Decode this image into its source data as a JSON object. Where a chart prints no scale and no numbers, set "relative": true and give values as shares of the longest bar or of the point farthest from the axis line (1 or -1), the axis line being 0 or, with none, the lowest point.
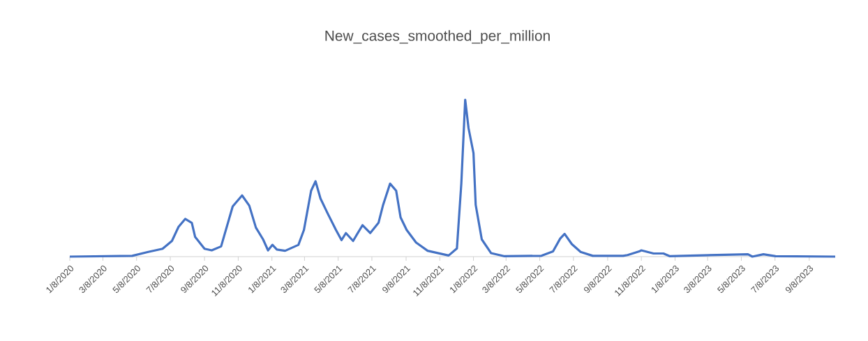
{
  "chart_data": {
    "type": "line",
    "title": "New_cases_smoothed_per_million",
    "relative": true,
    "x": [
      "2020-01-08",
      "2020-04-30",
      "2020-05-29",
      "2020-06-24",
      "2020-07-11",
      "2020-07-23",
      "2020-08-04",
      "2020-08-16",
      "2020-08-22",
      "2020-09-08",
      "2020-09-21",
      "2020-10-08",
      "2020-10-29",
      "2020-11-15",
      "2020-11-28",
      "2020-12-10",
      "2020-12-23",
      "2021-01-01",
      "2021-01-09",
      "2021-01-17",
      "2021-02-01",
      "2021-02-25",
      "2021-03-07",
      "2021-03-20",
      "2021-03-28",
      "2021-04-06",
      "2021-04-19",
      "2021-05-04",
      "2021-05-14",
      "2021-05-22",
      "2021-06-04",
      "2021-06-21",
      "2021-07-05",
      "2021-07-20",
      "2021-07-28",
      "2021-08-10",
      "2021-08-21",
      "2021-08-29",
      "2021-09-09",
      "2021-09-26",
      "2021-10-17",
      "2021-11-24",
      "2021-12-09",
      "2021-12-17",
      "2021-12-24",
      "2021-12-30",
      "2022-01-08",
      "2022-01-12",
      "2022-01-23",
      "2022-02-09",
      "2022-03-04",
      "2022-05-11",
      "2022-06-01",
      "2022-06-14",
      "2022-06-22",
      "2022-07-05",
      "2022-07-21",
      "2022-08-12",
      "2022-10-06",
      "2022-10-14",
      "2022-11-04",
      "2022-11-08",
      "2022-11-30",
      "2022-12-18",
      "2022-12-29",
      "2023-05-20",
      "2023-05-28",
      "2023-06-17",
      "2023-07-09",
      "2023-10-25"
    ],
    "series": [
      {
        "color": "#4472c4",
        "values": [
          0,
          0.005,
          0.03,
          0.05,
          0.1,
          0.19,
          0.24,
          0.215,
          0.125,
          0.05,
          0.04,
          0.065,
          0.32,
          0.39,
          0.325,
          0.185,
          0.11,
          0.04,
          0.075,
          0.045,
          0.037,
          0.075,
          0.17,
          0.42,
          0.48,
          0.37,
          0.275,
          0.17,
          0.105,
          0.15,
          0.1,
          0.2,
          0.15,
          0.215,
          0.325,
          0.465,
          0.42,
          0.25,
          0.17,
          0.09,
          0.037,
          0.007,
          0.052,
          0.467,
          1.0,
          0.82,
          0.66,
          0.33,
          0.11,
          0.022,
          0.003,
          0.005,
          0.033,
          0.115,
          0.145,
          0.08,
          0.03,
          0.005,
          0.005,
          0.01,
          0.033,
          0.04,
          0.02,
          0.02,
          0.003,
          0.015,
          0,
          0.015,
          0.003,
          0
        ]
      }
    ],
    "xlim": [
      "2020-01-08",
      "2023-10-25"
    ],
    "xticks": [
      {
        "value": "2020-01-08",
        "label": "1/8/2020"
      },
      {
        "value": "2020-03-08",
        "label": "3/8/2020"
      },
      {
        "value": "2020-05-08",
        "label": "5/8/2020"
      },
      {
        "value": "2020-07-08",
        "label": "7/8/2020"
      },
      {
        "value": "2020-09-08",
        "label": "9/8/2020"
      },
      {
        "value": "2020-11-08",
        "label": "11/8/2020"
      },
      {
        "value": "2021-01-08",
        "label": "1/8/2021"
      },
      {
        "value": "2021-03-08",
        "label": "3/8/2021"
      },
      {
        "value": "2021-05-08",
        "label": "5/8/2021"
      },
      {
        "value": "2021-07-08",
        "label": "7/8/2021"
      },
      {
        "value": "2021-09-08",
        "label": "9/8/2021"
      },
      {
        "value": "2021-11-08",
        "label": "11/8/2021"
      },
      {
        "value": "2022-01-08",
        "label": "1/8/2022"
      },
      {
        "value": "2022-03-08",
        "label": "3/8/2022"
      },
      {
        "value": "2022-05-08",
        "label": "5/8/2022"
      },
      {
        "value": "2022-07-08",
        "label": "7/8/2022"
      },
      {
        "value": "2022-09-08",
        "label": "9/8/2022"
      },
      {
        "value": "2022-11-08",
        "label": "11/8/2022"
      },
      {
        "value": "2023-01-08",
        "label": "1/8/2023"
      },
      {
        "value": "2023-03-08",
        "label": "3/8/2023"
      },
      {
        "value": "2023-05-08",
        "label": "5/8/2023"
      },
      {
        "value": "2023-07-08",
        "label": "7/8/2023"
      },
      {
        "value": "2023-09-08",
        "label": "9/8/2023"
      }
    ],
    "grid": false,
    "marker": "none",
    "line_style": "solid"
  }
}
